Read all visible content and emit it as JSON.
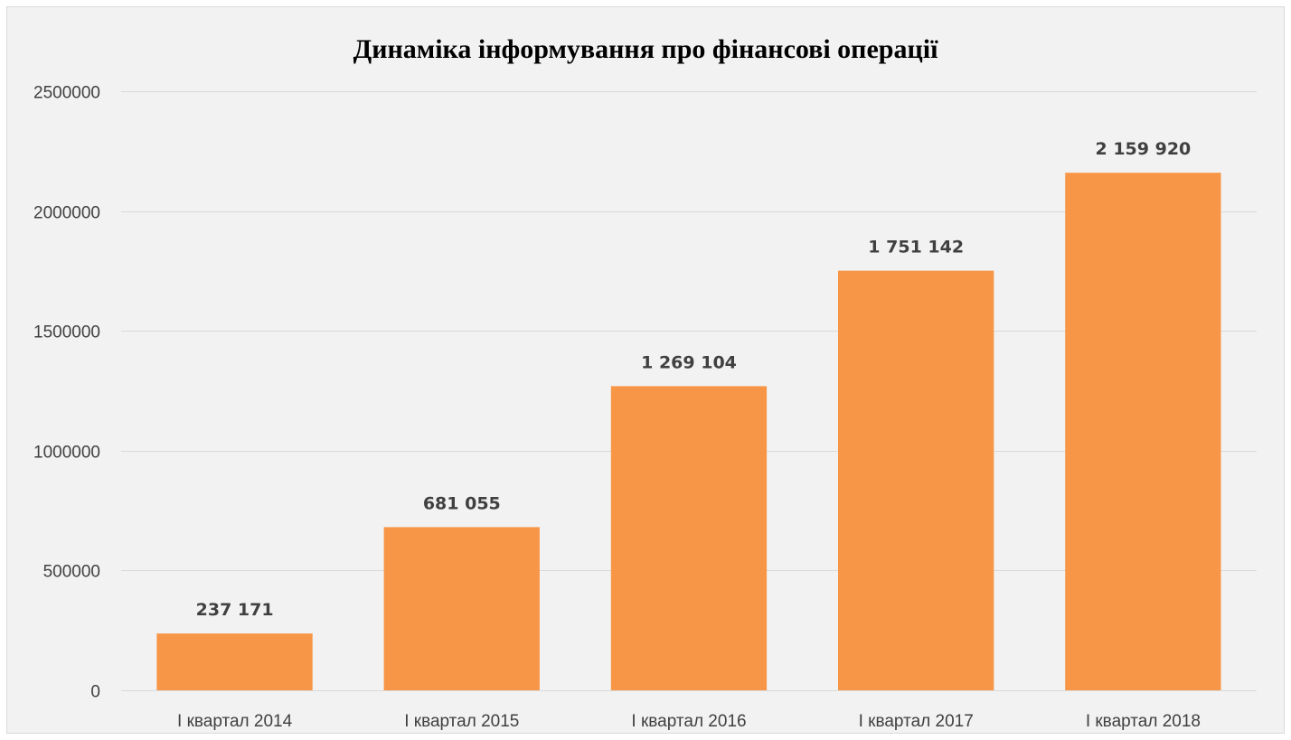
{
  "chart_data": {
    "type": "bar",
    "title": "Динаміка інформування про фінансові операції",
    "xlabel": "",
    "ylabel": "",
    "categories": [
      "І квартал 2014",
      "І квартал 2015",
      "І квартал 2016",
      "І квартал 2017",
      "І квартал 2018"
    ],
    "values": [
      237171,
      681055,
      1269104,
      1751142,
      2159920
    ],
    "data_labels": [
      "237 171",
      "681 055",
      "1 269 104",
      "1 751 142",
      "2 159 920"
    ],
    "y_ticks": [
      0,
      500000,
      1000000,
      1500000,
      2000000,
      2500000
    ],
    "y_tick_labels": [
      "0",
      "500000",
      "1000000",
      "1500000",
      "2000000",
      "2500000"
    ],
    "ylim": [
      0,
      2500000
    ],
    "grid": true,
    "legend": "none",
    "bar_color": "#f79646",
    "background_color": "#f2f2f2",
    "grid_color": "#d9d9d9",
    "label_color": "#404040"
  }
}
